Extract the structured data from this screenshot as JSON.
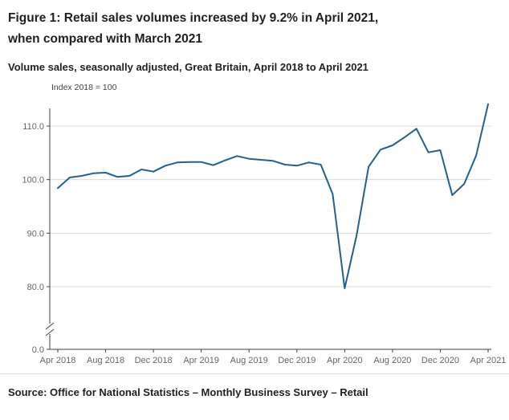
{
  "header": {
    "title_line1": "Figure 1: Retail sales volumes increased by 9.2% in April 2021,",
    "title_line2": "when compared with March 2021",
    "subtitle": "Volume sales, seasonally adjusted, Great Britain, April 2018 to April 2021"
  },
  "footer": {
    "source": "Source: Office for National Statistics – Monthly Business Survey – Retail"
  },
  "chart_data": {
    "type": "line",
    "title": "Figure 1: Retail sales volumes increased by 9.2% in April 2021, when compared with March 2021",
    "subtitle": "Volume sales, seasonally adjusted, Great Britain, April 2018 to April 2021",
    "unit_label": "Index 2018 = 100",
    "x": [
      "Apr 2018",
      "May 2018",
      "Jun 2018",
      "Jul 2018",
      "Aug 2018",
      "Sep 2018",
      "Oct 2018",
      "Nov 2018",
      "Dec 2018",
      "Jan 2019",
      "Feb 2019",
      "Mar 2019",
      "Apr 2019",
      "May 2019",
      "Jun 2019",
      "Jul 2019",
      "Aug 2019",
      "Sep 2019",
      "Oct 2019",
      "Nov 2019",
      "Dec 2019",
      "Jan 2020",
      "Feb 2020",
      "Mar 2020",
      "Apr 2020",
      "May 2020",
      "Jun 2020",
      "Jul 2020",
      "Aug 2020",
      "Sep 2020",
      "Oct 2020",
      "Nov 2020",
      "Dec 2020",
      "Jan 2021",
      "Feb 2021",
      "Mar 2021",
      "Apr 2021"
    ],
    "values": [
      98.4,
      100.4,
      100.7,
      101.2,
      101.3,
      100.5,
      100.7,
      101.9,
      101.5,
      102.6,
      103.2,
      103.3,
      103.3,
      102.7,
      103.6,
      104.4,
      103.9,
      103.7,
      103.5,
      102.8,
      102.6,
      103.2,
      102.8,
      97.3,
      79.7,
      89.6,
      102.4,
      105.6,
      106.4,
      107.9,
      109.5,
      105.1,
      105.5,
      97.1,
      99.2,
      104.5,
      114.1
    ],
    "x_tick_labels": [
      "Apr 2018",
      "Aug 2018",
      "Dec 2018",
      "Apr 2019",
      "Aug 2019",
      "Dec 2019",
      "Apr 2020",
      "Aug 2020",
      "Dec 2020",
      "Apr 2021"
    ],
    "y_ticks": [
      110,
      100,
      90,
      80,
      0
    ],
    "y_axis_break": true,
    "ylim": [
      0,
      115
    ],
    "grid": true,
    "legend": "none",
    "line_color": "#206095",
    "grid_color": "#d9d9d9",
    "axis_color": "#414042",
    "tick_label_color": "#666666"
  }
}
